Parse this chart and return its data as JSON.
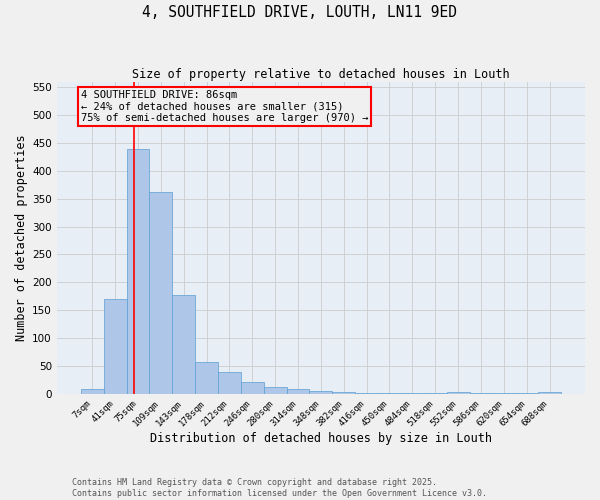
{
  "title": "4, SOUTHFIELD DRIVE, LOUTH, LN11 9ED",
  "subtitle": "Size of property relative to detached houses in Louth",
  "xlabel": "Distribution of detached houses by size in Louth",
  "ylabel": "Number of detached properties",
  "bar_color": "#aec6e8",
  "bar_edge_color": "#5a9fd4",
  "categories": [
    "7sqm",
    "41sqm",
    "75sqm",
    "109sqm",
    "143sqm",
    "178sqm",
    "212sqm",
    "246sqm",
    "280sqm",
    "314sqm",
    "348sqm",
    "382sqm",
    "416sqm",
    "450sqm",
    "484sqm",
    "518sqm",
    "552sqm",
    "586sqm",
    "620sqm",
    "654sqm",
    "688sqm"
  ],
  "values": [
    8,
    170,
    440,
    362,
    177,
    57,
    40,
    22,
    12,
    8,
    5,
    4,
    2,
    2,
    1,
    1,
    4,
    1,
    1,
    1,
    4
  ],
  "ylim": [
    0,
    560
  ],
  "yticks": [
    0,
    50,
    100,
    150,
    200,
    250,
    300,
    350,
    400,
    450,
    500,
    550
  ],
  "red_line_x": 1.82,
  "annotation_title": "4 SOUTHFIELD DRIVE: 86sqm",
  "annotation_line1": "← 24% of detached houses are smaller (315)",
  "annotation_line2": "75% of semi-detached houses are larger (970) →",
  "footnote1": "Contains HM Land Registry data © Crown copyright and database right 2025.",
  "footnote2": "Contains public sector information licensed under the Open Government Licence v3.0.",
  "background_color": "#f0f0f0",
  "grid_color": "#cccccc",
  "plot_bg_color": "#e8eef5"
}
